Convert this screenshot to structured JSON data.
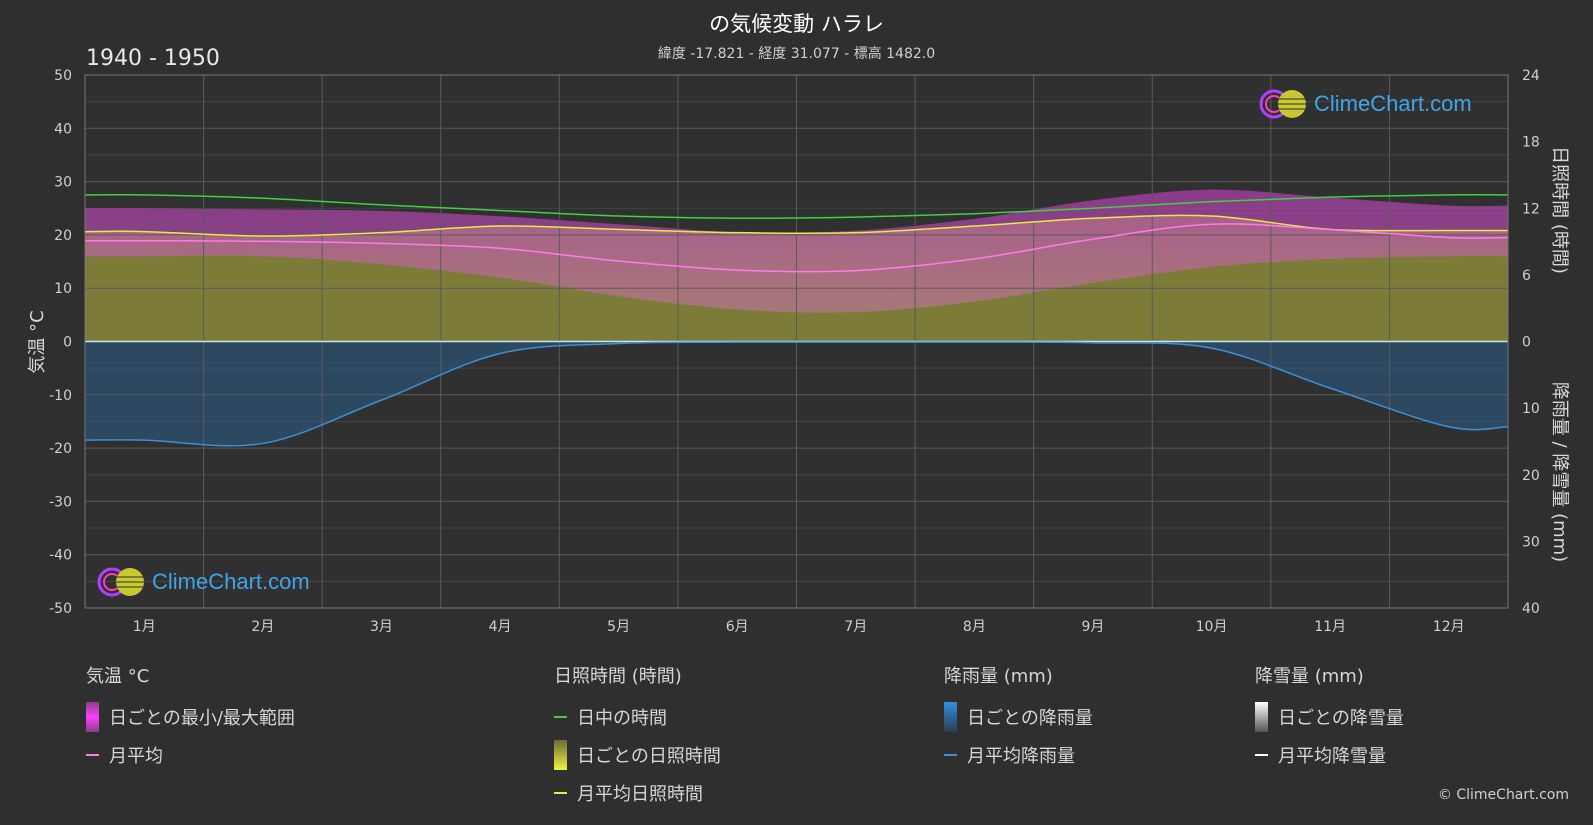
{
  "header": {
    "title": "の気候変動 ハラレ",
    "subtitle": "緯度 -17.821 - 経度 31.077 - 標高 1482.0",
    "period": "1940 - 1950"
  },
  "axes": {
    "left_label": "気温 °C",
    "right_top_label": "日照時間 (時間)",
    "right_bottom_label": "降雨量 / 降雪量 (mm)"
  },
  "logo_text": "ClimeChart.com",
  "copyright": "© ClimeChart.com",
  "colors": {
    "background": "#2f2f2f",
    "daylight": "#3fd13f",
    "sunshine_line": "#e8e84a",
    "sunshine_fill": "#8a8a3a",
    "temp_range": "#d64ad6",
    "temp_avg": "#ff7be8",
    "rain": "#3d8fd6",
    "rain_fill": "#2c5f8c",
    "snow": "#ffffff",
    "logo": "#3ea6e6"
  },
  "legend": {
    "temperature": {
      "title": "気温 °C",
      "items": [
        "日ごとの最小/最大範囲",
        "月平均"
      ]
    },
    "sunshine": {
      "title": "日照時間 (時間)",
      "items": [
        "日中の時間",
        "日ごとの日照時間",
        "月平均日照時間"
      ]
    },
    "rain": {
      "title": "降雨量 (mm)",
      "items": [
        "日ごとの降雨量",
        "月平均降雨量"
      ]
    },
    "snow": {
      "title": "降雪量 (mm)",
      "items": [
        "日ごとの降雪量",
        "月平均降雪量"
      ]
    }
  },
  "chart_data": {
    "type": "line",
    "categories": [
      "1月",
      "2月",
      "3月",
      "4月",
      "5月",
      "6月",
      "7月",
      "8月",
      "9月",
      "10月",
      "11月",
      "12月"
    ],
    "y_left": {
      "ticks": [
        50,
        40,
        30,
        20,
        10,
        0,
        -10,
        -20,
        -30,
        -40,
        -50
      ],
      "range": [
        -50,
        50
      ]
    },
    "y_right_sun": {
      "ticks": [
        24,
        18,
        12,
        6,
        0
      ],
      "range": [
        0,
        24
      ]
    },
    "y_right_precip": {
      "ticks": [
        0,
        10,
        20,
        30,
        40
      ],
      "range": [
        0,
        40
      ]
    },
    "grid": true,
    "series": [
      {
        "name": "日中の時間",
        "axis": "sunshine_hours",
        "values": [
          13.2,
          12.9,
          12.3,
          11.8,
          11.3,
          11.1,
          11.2,
          11.5,
          12.0,
          12.6,
          13.0,
          13.2
        ]
      },
      {
        "name": "月平均日照時間",
        "axis": "sunshine_hours",
        "values": [
          9.9,
          9.5,
          9.8,
          10.4,
          10.1,
          9.8,
          9.8,
          10.4,
          11.1,
          11.3,
          10.1,
          10.0
        ]
      },
      {
        "name": "月平均",
        "axis": "temperature_c",
        "values": [
          18.9,
          18.8,
          18.4,
          17.5,
          15.1,
          13.4,
          13.3,
          15.5,
          19.2,
          22.0,
          21.0,
          19.5
        ]
      },
      {
        "name": "日ごとの最小/最大範囲 (max)",
        "axis": "temperature_c",
        "values": [
          25.0,
          24.8,
          24.5,
          23.5,
          22.0,
          20.5,
          20.8,
          23.0,
          26.5,
          28.5,
          27.0,
          25.5
        ]
      },
      {
        "name": "日ごとの最小/最大範囲 (min)",
        "axis": "temperature_c",
        "values": [
          16.0,
          16.0,
          14.5,
          12.0,
          8.5,
          6.0,
          5.5,
          7.5,
          11.0,
          14.0,
          15.5,
          16.0
        ]
      },
      {
        "name": "月平均降雨量",
        "axis": "precip_mm",
        "values": [
          14.8,
          15.3,
          8.8,
          1.8,
          0.3,
          0.1,
          0.1,
          0.1,
          0.2,
          1.0,
          7.0,
          12.8
        ]
      }
    ]
  }
}
